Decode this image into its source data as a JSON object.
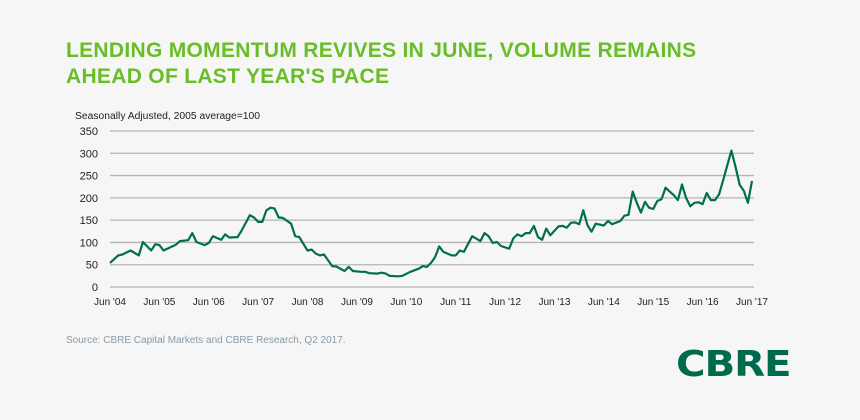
{
  "title_lines": [
    "LENDING MOMENTUM REVIVES IN JUNE, VOLUME REMAINS",
    "AHEAD OF LAST YEAR'S PACE"
  ],
  "source": "Source: CBRE Capital Markets and CBRE Research, Q2 2017.",
  "logo_text": "CBRE",
  "colors": {
    "title": "#69be28",
    "line": "#00704a",
    "logo": "#006a4d",
    "grid": "#b4b4b4"
  },
  "chart_data": {
    "type": "line",
    "title": "",
    "ylabel": "Seasonally Adjusted,  2005 average=100",
    "xlabel": "",
    "ylim": [
      0,
      350
    ],
    "yticks": [
      0,
      50,
      100,
      150,
      200,
      250,
      300,
      350
    ],
    "xlim": [
      "2004-06",
      "2017-06"
    ],
    "xtick_labels": [
      "Jun '04",
      "Jun '05",
      "Jun '06",
      "Jun '07",
      "Jun '08",
      "Jun '09",
      "Jun '10",
      "Jun '11",
      "Jun '12",
      "Jun '13",
      "Jun '14",
      "Jun '15",
      "Jun '16",
      "Jun '17"
    ],
    "grid": true,
    "series": [
      {
        "x": [
          "2004-06",
          "2004-08",
          "2004-09",
          "2004-11",
          "2005-01",
          "2005-02",
          "2005-04",
          "2005-05",
          "2005-06",
          "2005-07",
          "2005-10",
          "2005-11",
          "2006-01",
          "2006-02",
          "2006-03",
          "2006-05",
          "2006-06",
          "2006-07",
          "2006-09",
          "2006-10",
          "2006-11",
          "2007-01",
          "2007-02",
          "2007-04",
          "2007-05",
          "2007-06",
          "2007-07",
          "2007-08",
          "2007-09",
          "2007-10",
          "2007-11",
          "2007-12",
          "2008-02",
          "2008-03",
          "2008-04",
          "2008-05",
          "2008-06",
          "2008-07",
          "2008-08",
          "2008-09",
          "2008-10",
          "2008-12",
          "2009-01",
          "2009-03",
          "2009-04",
          "2009-05",
          "2009-07",
          "2009-08",
          "2009-09",
          "2009-11",
          "2009-12",
          "2010-01",
          "2010-02",
          "2010-04",
          "2010-05",
          "2010-07",
          "2010-09",
          "2010-10",
          "2010-11",
          "2010-12",
          "2011-01",
          "2011-02",
          "2011-03",
          "2011-05",
          "2011-06",
          "2011-07",
          "2011-08",
          "2011-10",
          "2011-12",
          "2012-01",
          "2012-02",
          "2012-03",
          "2012-04",
          "2012-05",
          "2012-07",
          "2012-08",
          "2012-09",
          "2012-10",
          "2012-11",
          "2012-12",
          "2013-01",
          "2013-02",
          "2013-03",
          "2013-04",
          "2013-05",
          "2013-07",
          "2013-08",
          "2013-09",
          "2013-10",
          "2013-11",
          "2013-12",
          "2014-01",
          "2014-02",
          "2014-03",
          "2014-04",
          "2014-06",
          "2014-07",
          "2014-08",
          "2014-10",
          "2014-11",
          "2014-12",
          "2015-01",
          "2015-02",
          "2015-03",
          "2015-04",
          "2015-05",
          "2015-06",
          "2015-07",
          "2015-08",
          "2015-09",
          "2015-10",
          "2015-11",
          "2015-12",
          "2016-01",
          "2016-02",
          "2016-03",
          "2016-04",
          "2016-05",
          "2016-06",
          "2016-07",
          "2016-08",
          "2016-09",
          "2016-10",
          "2016-11",
          "2017-01",
          "2017-02",
          "2017-03",
          "2017-04",
          "2017-05",
          "2017-06"
        ],
        "y": [
          54,
          71,
          73,
          82,
          71,
          101,
          82,
          96,
          94,
          82,
          95,
          103,
          105,
          121,
          101,
          94,
          99,
          114,
          106,
          118,
          111,
          112,
          127,
          161,
          156,
          146,
          146,
          172,
          178,
          176,
          156,
          155,
          142,
          114,
          112,
          97,
          82,
          84,
          75,
          71,
          73,
          47,
          46,
          36,
          45,
          36,
          34,
          34,
          31,
          30,
          32,
          30,
          25,
          24,
          25,
          34,
          41,
          47,
          45,
          54,
          67,
          91,
          79,
          71,
          71,
          82,
          79,
          114,
          103,
          121,
          114,
          99,
          101,
          92,
          86,
          109,
          118,
          114,
          121,
          121,
          137,
          112,
          106,
          131,
          116,
          136,
          137,
          133,
          144,
          145,
          141,
          172,
          139,
          124,
          142,
          138,
          148,
          141,
          148,
          160,
          162,
          214,
          189,
          167,
          191,
          178,
          175,
          193,
          197,
          223,
          214,
          206,
          195,
          230,
          199,
          181,
          189,
          190,
          186,
          211,
          195,
          195,
          208,
          240,
          306,
          270,
          229,
          216,
          189,
          238
        ]
      }
    ]
  }
}
